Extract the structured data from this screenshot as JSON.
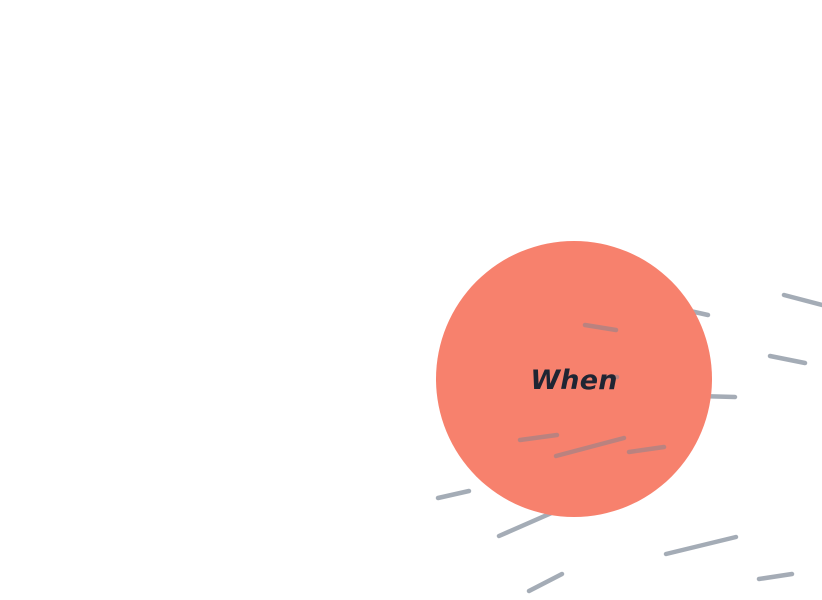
{
  "circle": {
    "label": "When",
    "fill_color": "#f7816d",
    "text_color": "#1f2533"
  },
  "stroke_color": "#7a8594"
}
